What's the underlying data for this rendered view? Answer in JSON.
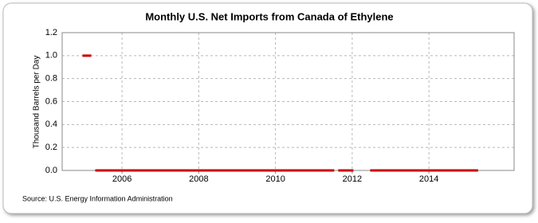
{
  "chart_data": {
    "type": "line",
    "title": "Monthly U.S. Net Imports from Canada of Ethylene",
    "y_label": "Thousand Barrels per Day",
    "source": "Source: U.S. Energy Information Administration",
    "xlim": [
      2004.44,
      2016.22
    ],
    "xticks": [
      2006,
      2008,
      2010,
      2012,
      2014
    ],
    "ylim": [
      0,
      1.2
    ],
    "yticks": [
      {
        "value": 0,
        "label": "0.0"
      },
      0.2,
      0.4,
      0.6,
      0.8,
      {
        "value": 1,
        "label": "1.0"
      },
      1.2
    ],
    "grid": true,
    "x": [
      2005,
      2005.083,
      2005.167,
      2005.25,
      2005.333,
      2005.417,
      2005.5,
      2005.583,
      2005.667,
      2005.75,
      2005.833,
      2005.917,
      2006,
      2006.083,
      2006.167,
      2006.25,
      2006.333,
      2006.417,
      2006.5,
      2006.583,
      2006.667,
      2006.75,
      2006.833,
      2006.917,
      2007,
      2007.083,
      2007.167,
      2007.25,
      2007.333,
      2007.417,
      2007.5,
      2007.583,
      2007.667,
      2007.75,
      2007.833,
      2007.917,
      2008,
      2008.083,
      2008.167,
      2008.25,
      2008.333,
      2008.417,
      2008.5,
      2008.583,
      2008.667,
      2008.75,
      2008.833,
      2008.917,
      2009,
      2009.083,
      2009.167,
      2009.25,
      2009.333,
      2009.417,
      2009.5,
      2009.583,
      2009.667,
      2009.75,
      2009.833,
      2009.917,
      2010,
      2010.083,
      2010.167,
      2010.25,
      2010.333,
      2010.417,
      2010.5,
      2010.583,
      2010.667,
      2010.75,
      2010.833,
      2010.917,
      2011,
      2011.083,
      2011.167,
      2011.25,
      2011.333,
      2011.417,
      2011.5,
      2011.583,
      2011.667,
      2011.75,
      2011.833,
      2011.917,
      2012,
      2012.083,
      2012.167,
      2012.25,
      2012.333,
      2012.417,
      2012.5,
      2012.583,
      2012.667,
      2012.75,
      2012.833,
      2012.917,
      2013,
      2013.083,
      2013.167,
      2013.25,
      2013.333,
      2013.417,
      2013.5,
      2013.583,
      2013.667,
      2013.75,
      2013.833,
      2013.917,
      2014,
      2014.083,
      2014.167,
      2014.25,
      2014.333,
      2014.417,
      2014.5,
      2014.583,
      2014.667,
      2014.75,
      2014.833,
      2014.917,
      2015,
      2015.083,
      2015.167,
      2015.25
    ],
    "series": [
      {
        "color": "#cc0000",
        "values": [
          1,
          1,
          1,
          null,
          0,
          0,
          0,
          0,
          0,
          0,
          0,
          0,
          0,
          0,
          0,
          0,
          0,
          0,
          0,
          0,
          0,
          0,
          0,
          0,
          0,
          0,
          0,
          0,
          0,
          0,
          0,
          0,
          0,
          0,
          0,
          0,
          0,
          0,
          0,
          0,
          0,
          0,
          0,
          0,
          0,
          0,
          0,
          0,
          0,
          0,
          0,
          0,
          0,
          0,
          0,
          0,
          0,
          0,
          0,
          0,
          0,
          0,
          0,
          0,
          0,
          0,
          0,
          0,
          0,
          0,
          0,
          0,
          0,
          0,
          0,
          0,
          0,
          0,
          0,
          null,
          0,
          0,
          0,
          0,
          0,
          null,
          0,
          null,
          0,
          null,
          0,
          0,
          0,
          0,
          0,
          0,
          0,
          0,
          0,
          0,
          0,
          0,
          0,
          0,
          0,
          0,
          0,
          0,
          0,
          0,
          0,
          0,
          0,
          0,
          0,
          0,
          0,
          0,
          0,
          0,
          0,
          0,
          0,
          0
        ]
      }
    ]
  }
}
